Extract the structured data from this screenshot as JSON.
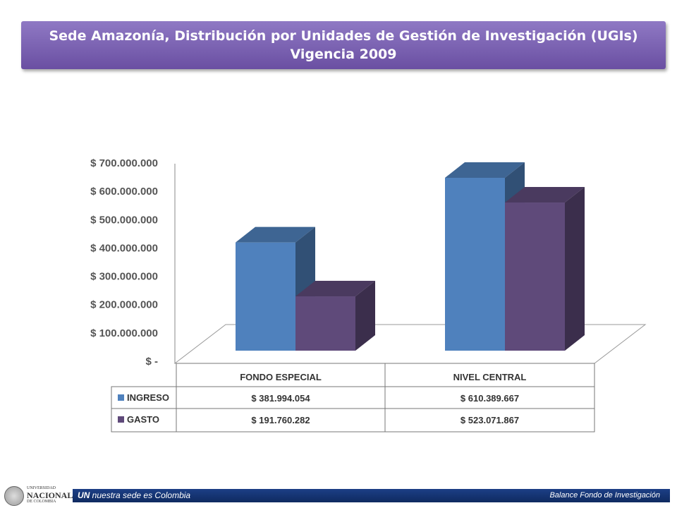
{
  "title": {
    "line1": "Sede Amazonía, Distribución por Unidades de Gestión de Investigación (UGIs)",
    "line2": "Vigencia 2009"
  },
  "chart_data": {
    "type": "bar",
    "style": "3d-clustered-column-with-data-table",
    "categories": [
      "FONDO ESPECIAL",
      "NIVEL CENTRAL"
    ],
    "series": [
      {
        "name": "INGRESO",
        "values": [
          381994054,
          610389667
        ],
        "labels": [
          "$ 381.994.054",
          "$ 610.389.667"
        ],
        "color": "#4f81bd"
      },
      {
        "name": "GASTO",
        "values": [
          191760282,
          523071867
        ],
        "labels": [
          "$ 191.760.282",
          "$ 523.071.867"
        ],
        "color": "#5f4a7a"
      }
    ],
    "ylim": [
      0,
      700000000
    ],
    "ytick_labels": [
      "$ 700.000.000",
      "$ 600.000.000",
      "$ 500.000.000",
      "$ 400.000.000",
      "$ 300.000.000",
      "$ 200.000.000",
      "$ 100.000.000",
      "$ -"
    ],
    "legend": "in-data-table"
  },
  "footer": {
    "brand": "UN",
    "slogan": " nuestra sede es Colombia",
    "right": "Balance Fondo de Investigación",
    "logo_line1": "UNIVERSIDAD",
    "logo_line2": "NACIONAL",
    "logo_line3": "DE COLOMBIA"
  },
  "colors": {
    "title_bg": "#7a62b3",
    "footer_bg": "#163573",
    "ingreso": "#4f81bd",
    "gasto": "#5f4a7a"
  }
}
